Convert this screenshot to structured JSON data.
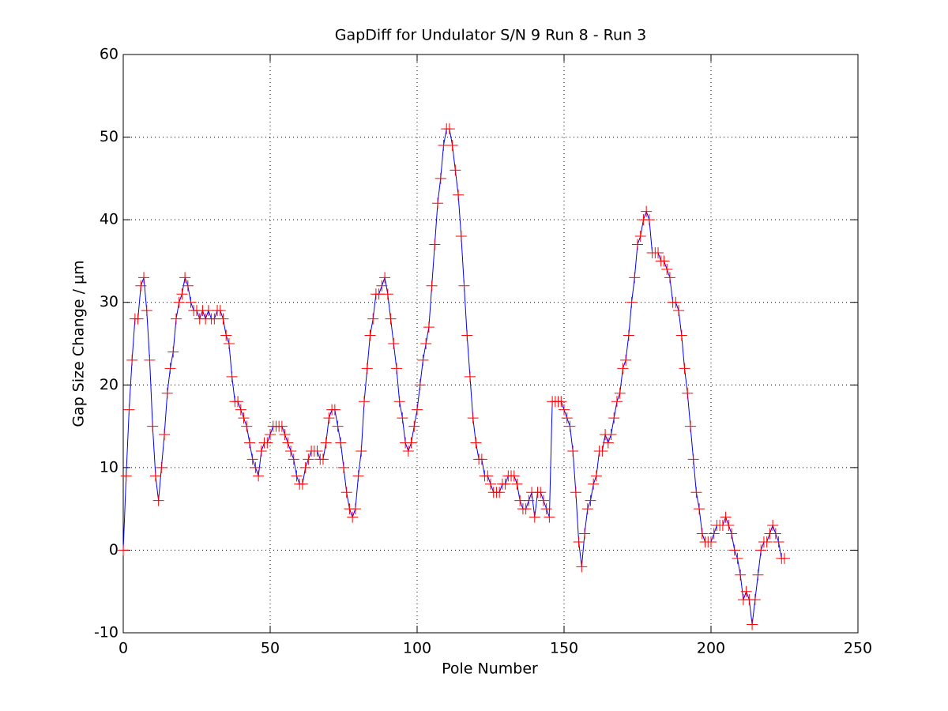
{
  "chart_data": {
    "type": "line",
    "title": "GapDiff  for Undulator S/N 9 Run 8 - Run 3",
    "xlabel": "Pole Number",
    "ylabel": "Gap Size Change / µm",
    "x": [
      0,
      1,
      2,
      3,
      4,
      5,
      6,
      7,
      8,
      9,
      10,
      11,
      12,
      13,
      14,
      15,
      16,
      17,
      18,
      19,
      20,
      21,
      22,
      23,
      24,
      25,
      26,
      27,
      28,
      29,
      30,
      31,
      32,
      33,
      34,
      35,
      36,
      37,
      38,
      39,
      40,
      41,
      42,
      43,
      44,
      45,
      46,
      47,
      48,
      49,
      50,
      51,
      52,
      53,
      54,
      55,
      56,
      57,
      58,
      59,
      60,
      61,
      62,
      63,
      64,
      65,
      66,
      67,
      68,
      69,
      70,
      71,
      72,
      73,
      74,
      75,
      76,
      77,
      78,
      79,
      80,
      81,
      82,
      83,
      84,
      85,
      86,
      87,
      88,
      89,
      90,
      91,
      92,
      93,
      94,
      95,
      96,
      97,
      98,
      99,
      100,
      101,
      102,
      103,
      104,
      105,
      106,
      107,
      108,
      109,
      110,
      111,
      112,
      113,
      114,
      115,
      116,
      117,
      118,
      119,
      120,
      121,
      122,
      123,
      124,
      125,
      126,
      127,
      128,
      129,
      130,
      131,
      132,
      133,
      134,
      135,
      136,
      137,
      138,
      139,
      140,
      141,
      142,
      143,
      144,
      145,
      146,
      147,
      148,
      149,
      150,
      151,
      152,
      153,
      154,
      155,
      156,
      157,
      158,
      159,
      160,
      161,
      162,
      163,
      164,
      165,
      166,
      167,
      168,
      169,
      170,
      171,
      172,
      173,
      174,
      175,
      176,
      177,
      178,
      179,
      180,
      181,
      182,
      183,
      184,
      185,
      186,
      187,
      188,
      189,
      190,
      191,
      192,
      193,
      194,
      195,
      196,
      197,
      198,
      199,
      200,
      201,
      202,
      203,
      204,
      205,
      206,
      207,
      208,
      209,
      210,
      211,
      212,
      213,
      214,
      215,
      216,
      217,
      218,
      219,
      220,
      221,
      222,
      223,
      224,
      225
    ],
    "series": [
      {
        "name": "GapDiff",
        "color": "#0000ff",
        "marker_color": "#ff0000",
        "values": [
          0,
          9,
          17,
          23,
          28,
          28,
          32,
          33,
          29,
          23,
          15,
          9,
          6,
          10,
          14,
          19,
          22,
          24,
          28,
          30,
          31,
          33,
          32,
          30,
          29,
          29,
          28,
          29,
          28,
          29,
          28,
          28,
          29,
          29,
          28,
          26,
          25,
          21,
          18,
          18,
          17,
          16,
          15,
          13,
          11,
          10,
          9,
          12,
          13,
          13,
          14,
          15,
          15,
          15,
          15,
          14,
          13,
          12,
          11,
          9,
          8,
          8,
          10,
          11,
          12,
          12,
          12,
          11,
          11,
          13,
          16,
          17,
          17,
          15,
          13,
          10,
          7,
          5,
          4,
          5,
          9,
          12,
          18,
          22,
          26,
          28,
          31,
          31,
          32,
          33,
          31,
          28,
          25,
          22,
          18,
          16,
          13,
          12,
          13,
          15,
          17,
          20,
          23,
          25,
          27,
          32,
          37,
          42,
          45,
          49,
          51,
          51,
          49,
          46,
          43,
          38,
          32,
          26,
          21,
          16,
          13,
          11,
          11,
          9,
          9,
          8,
          7,
          7,
          7,
          8,
          8,
          9,
          9,
          9,
          8,
          6,
          5,
          5,
          6,
          7,
          4,
          7,
          7,
          6,
          5,
          4,
          18,
          18,
          18,
          18,
          17,
          16,
          15,
          12,
          7,
          1,
          -2,
          2,
          5,
          6,
          8,
          9,
          12,
          12,
          14,
          13,
          14,
          16,
          18,
          19,
          22,
          23,
          26,
          30,
          33,
          37,
          38,
          40,
          41,
          40,
          36,
          36,
          36,
          35,
          35,
          34,
          33,
          30,
          30,
          29,
          26,
          22,
          19,
          15,
          11,
          7,
          5,
          2,
          1,
          1,
          1,
          2,
          3,
          3,
          3,
          4,
          3,
          2,
          0,
          -1,
          -3,
          -6,
          -5,
          -6,
          -9,
          -6,
          -3,
          0,
          1,
          1,
          2,
          3,
          2,
          1,
          -1,
          -1
        ]
      }
    ],
    "xlim": [
      0,
      250
    ],
    "xticks": [
      0,
      50,
      100,
      150,
      200,
      250
    ],
    "ylim": [
      -10,
      60
    ],
    "yticks": [
      -10,
      0,
      10,
      20,
      30,
      40,
      50,
      60
    ],
    "grid": true
  }
}
